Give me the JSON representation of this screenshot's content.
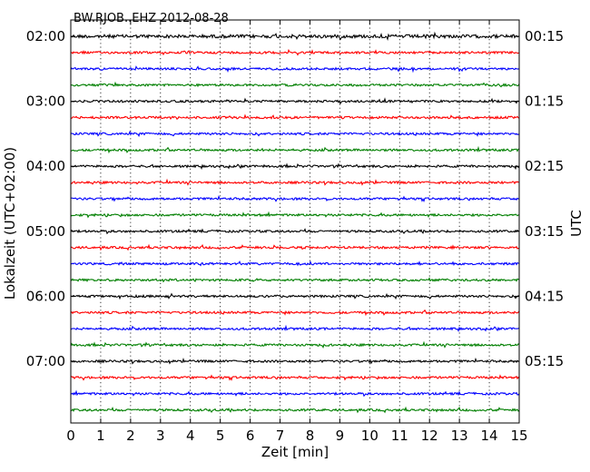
{
  "chart_data": {
    "type": "line",
    "title": "BW.RJOB..EHZ 2012-08-28",
    "xlabel": "Zeit  [min]",
    "ylabel_left": "Lokalzeit (UTC+02:00)",
    "ylabel_right": "UTC",
    "xlim": [
      0,
      15
    ],
    "x_ticks": [
      "0",
      "1",
      "2",
      "3",
      "4",
      "5",
      "6",
      "7",
      "8",
      "9",
      "10",
      "11",
      "12",
      "13",
      "14",
      "15"
    ],
    "left_tick_labels": [
      "02:00",
      "03:00",
      "04:00",
      "05:00",
      "06:00",
      "07:00"
    ],
    "right_tick_labels": [
      "00:15",
      "01:15",
      "02:15",
      "03:15",
      "04:15",
      "05:15"
    ],
    "trace_count": 24,
    "trace_color_cycle": [
      "#000000",
      "#ff0000",
      "#0000ff",
      "#007f00"
    ],
    "vertical_grid": true,
    "grid_style": "dotted"
  }
}
